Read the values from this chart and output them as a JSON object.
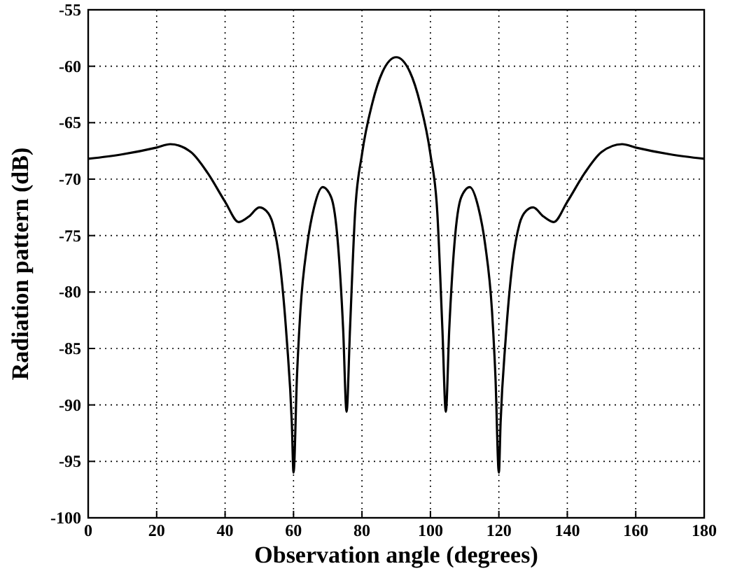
{
  "chart_data": {
    "type": "line",
    "xlabel": "Observation angle (degrees)",
    "ylabel": "Radiation pattern (dB)",
    "xlim": [
      0,
      180
    ],
    "ylim": [
      -100,
      -55
    ],
    "xticks": [
      0,
      20,
      40,
      60,
      80,
      100,
      120,
      140,
      160,
      180
    ],
    "yticks": [
      -100,
      -95,
      -90,
      -85,
      -80,
      -75,
      -70,
      -65,
      -60,
      -55
    ],
    "grid": true,
    "series": [
      {
        "color": "#000000",
        "x": [
          0,
          10,
          20,
          24,
          30,
          35,
          40,
          44,
          47,
          50,
          52,
          54,
          56,
          58,
          59.5,
          60,
          61,
          62,
          64,
          66,
          68.5,
          71,
          73,
          74.5,
          75.5,
          76.5,
          78,
          80,
          83,
          86,
          90,
          94,
          97,
          100,
          102,
          103.5,
          104.5,
          105.5,
          107,
          109,
          111.5,
          114,
          116,
          118,
          119,
          120,
          120.5,
          122,
          124,
          126,
          128,
          130,
          133,
          136,
          140,
          145,
          150,
          156,
          160,
          170,
          180
        ],
        "values": [
          -68.2,
          -67.8,
          -67.2,
          -66.9,
          -67.6,
          -69.5,
          -72.0,
          -73.8,
          -73.3,
          -72.5,
          -72.8,
          -74.0,
          -77.4,
          -84.1,
          -91.6,
          -96.0,
          -87.5,
          -81.7,
          -75.8,
          -72.5,
          -70.7,
          -71.6,
          -75.8,
          -83.3,
          -90.6,
          -83.3,
          -72.9,
          -67.8,
          -63.3,
          -60.5,
          -59.2,
          -60.5,
          -63.3,
          -67.8,
          -72.9,
          -83.3,
          -90.6,
          -83.3,
          -75.8,
          -71.6,
          -70.7,
          -72.5,
          -75.8,
          -81.7,
          -87.5,
          -96.0,
          -91.6,
          -84.1,
          -77.4,
          -74.0,
          -72.8,
          -72.5,
          -73.3,
          -73.8,
          -72.0,
          -69.5,
          -67.6,
          -66.9,
          -67.2,
          -67.8,
          -68.2
        ]
      }
    ]
  }
}
